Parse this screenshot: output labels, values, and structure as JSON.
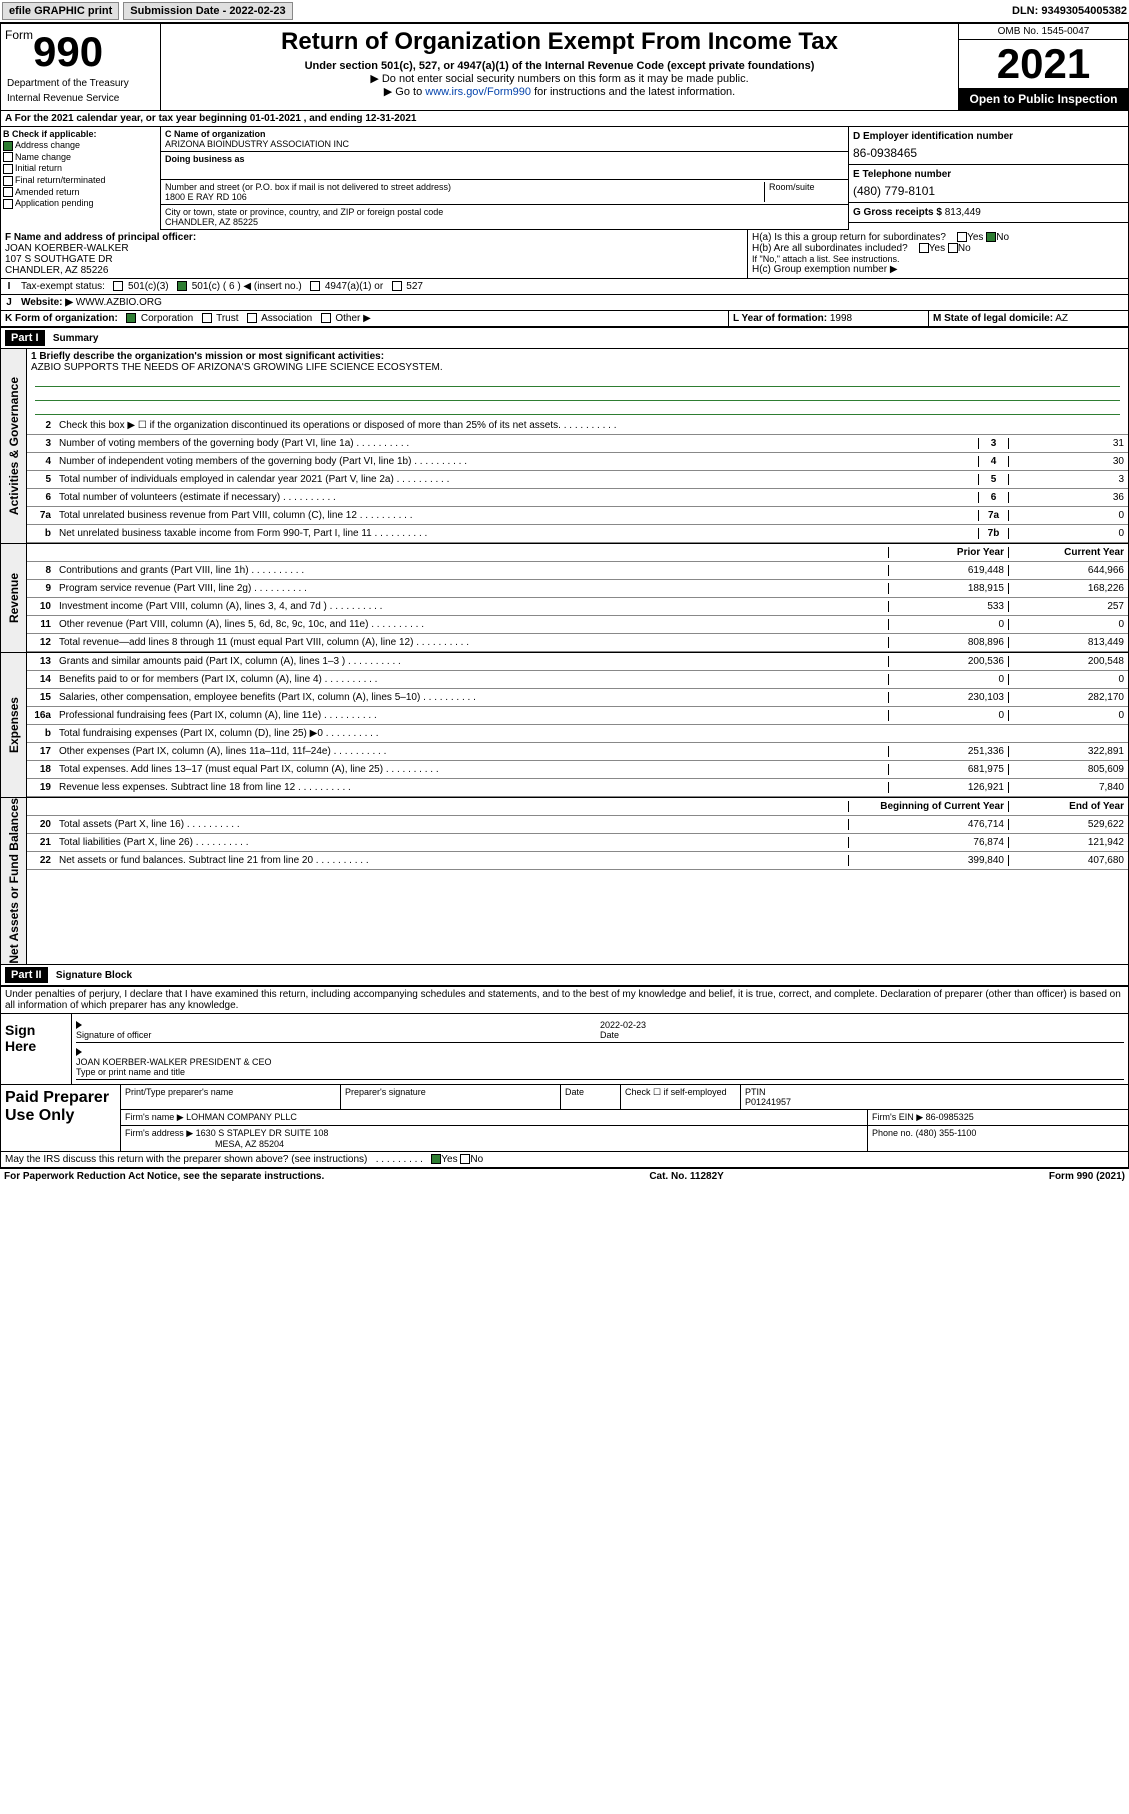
{
  "topbar": {
    "efile": "efile GRAPHIC print",
    "submission_label": "Submission Date - 2022-02-23",
    "dln": "DLN: 93493054005382"
  },
  "header": {
    "form_word": "Form",
    "form_num": "990",
    "title": "Return of Organization Exempt From Income Tax",
    "subtitle": "Under section 501(c), 527, or 4947(a)(1) of the Internal Revenue Code (except private foundations)",
    "note1": "▶ Do not enter social security numbers on this form as it may be made public.",
    "note2_pre": "▶ Go to ",
    "note2_link": "www.irs.gov/Form990",
    "note2_post": " for instructions and the latest information.",
    "omb": "OMB No. 1545-0047",
    "year": "2021",
    "open": "Open to Public Inspection",
    "dept": "Department of the Treasury",
    "irs": "Internal Revenue Service"
  },
  "row_a": {
    "text": "A For the 2021 calendar year, or tax year beginning 01-01-2021   , and ending 12-31-2021"
  },
  "col_b": {
    "header": "B Check if applicable:",
    "items": [
      "Address change",
      "Name change",
      "Initial return",
      "Final return/terminated",
      "Amended return",
      "Application pending"
    ],
    "checked_idx": 0
  },
  "col_c": {
    "name_lbl": "C Name of organization",
    "name": "ARIZONA BIOINDUSTRY ASSOCIATION INC",
    "dba_lbl": "Doing business as",
    "dba": "",
    "addr_lbl": "Number and street (or P.O. box if mail is not delivered to street address)",
    "room_lbl": "Room/suite",
    "addr": "1800 E RAY RD 106",
    "city_lbl": "City or town, state or province, country, and ZIP or foreign postal code",
    "city": "CHANDLER, AZ  85225"
  },
  "col_d": {
    "lbl": "D Employer identification number",
    "val": "86-0938465"
  },
  "col_e": {
    "lbl": "E Telephone number",
    "val": "(480) 779-8101"
  },
  "col_g": {
    "lbl": "G Gross receipts $",
    "val": "813,449"
  },
  "col_f": {
    "lbl": "F Name and address of principal officer:",
    "name": "JOAN KOERBER-WALKER",
    "addr1": "107 S SOUTHGATE DR",
    "addr2": "CHANDLER, AZ  85226"
  },
  "ha": {
    "lbl": "H(a)  Is this a group return for subordinates?",
    "yes": "Yes",
    "no": "No"
  },
  "hb": {
    "lbl": "H(b)  Are all subordinates included?",
    "yes": "Yes",
    "no": "No",
    "note": "If \"No,\" attach a list. See instructions."
  },
  "hc": {
    "lbl": "H(c)  Group exemption number ▶"
  },
  "row_i": {
    "lbl": "Tax-exempt status:",
    "opts": [
      "501(c)(3)",
      "501(c) ( 6 ) ◀ (insert no.)",
      "4947(a)(1) or",
      "527"
    ],
    "checked_idx": 1
  },
  "row_j": {
    "lbl": "Website: ▶",
    "val": "WWW.AZBIO.ORG"
  },
  "row_k": {
    "lbl": "K Form of organization:",
    "opts": [
      "Corporation",
      "Trust",
      "Association",
      "Other ▶"
    ],
    "checked_idx": 0
  },
  "row_l": {
    "lbl": "L Year of formation:",
    "val": "1998"
  },
  "row_m": {
    "lbl": "M State of legal domicile:",
    "val": "AZ"
  },
  "part1": {
    "hdr": "Part I",
    "title": "Summary"
  },
  "mission": {
    "lbl": "1  Briefly describe the organization's mission or most significant activities:",
    "text": "AZBIO SUPPORTS THE NEEDS OF ARIZONA'S GROWING LIFE SCIENCE ECOSYSTEM."
  },
  "gov_lines": [
    {
      "n": "2",
      "t": "Check this box ▶ ☐  if the organization discontinued its operations or disposed of more than 25% of its net assets.",
      "box": "",
      "v": ""
    },
    {
      "n": "3",
      "t": "Number of voting members of the governing body (Part VI, line 1a)",
      "box": "3",
      "v": "31"
    },
    {
      "n": "4",
      "t": "Number of independent voting members of the governing body (Part VI, line 1b)",
      "box": "4",
      "v": "30"
    },
    {
      "n": "5",
      "t": "Total number of individuals employed in calendar year 2021 (Part V, line 2a)",
      "box": "5",
      "v": "3"
    },
    {
      "n": "6",
      "t": "Total number of volunteers (estimate if necessary)",
      "box": "6",
      "v": "36"
    },
    {
      "n": "7a",
      "t": "Total unrelated business revenue from Part VIII, column (C), line 12",
      "box": "7a",
      "v": "0"
    },
    {
      "n": "b",
      "t": "Net unrelated business taxable income from Form 990-T, Part I, line 11",
      "box": "7b",
      "v": "0"
    }
  ],
  "two_col_hdr": {
    "prior": "Prior Year",
    "current": "Current Year"
  },
  "rev_lines": [
    {
      "n": "8",
      "t": "Contributions and grants (Part VIII, line 1h)",
      "p": "619,448",
      "c": "644,966"
    },
    {
      "n": "9",
      "t": "Program service revenue (Part VIII, line 2g)",
      "p": "188,915",
      "c": "168,226"
    },
    {
      "n": "10",
      "t": "Investment income (Part VIII, column (A), lines 3, 4, and 7d )",
      "p": "533",
      "c": "257"
    },
    {
      "n": "11",
      "t": "Other revenue (Part VIII, column (A), lines 5, 6d, 8c, 9c, 10c, and 11e)",
      "p": "0",
      "c": "0"
    },
    {
      "n": "12",
      "t": "Total revenue—add lines 8 through 11 (must equal Part VIII, column (A), line 12)",
      "p": "808,896",
      "c": "813,449"
    }
  ],
  "exp_lines": [
    {
      "n": "13",
      "t": "Grants and similar amounts paid (Part IX, column (A), lines 1–3 )",
      "p": "200,536",
      "c": "200,548"
    },
    {
      "n": "14",
      "t": "Benefits paid to or for members (Part IX, column (A), line 4)",
      "p": "0",
      "c": "0"
    },
    {
      "n": "15",
      "t": "Salaries, other compensation, employee benefits (Part IX, column (A), lines 5–10)",
      "p": "230,103",
      "c": "282,170"
    },
    {
      "n": "16a",
      "t": "Professional fundraising fees (Part IX, column (A), line 11e)",
      "p": "0",
      "c": "0"
    },
    {
      "n": "b",
      "t": "Total fundraising expenses (Part IX, column (D), line 25) ▶0",
      "p": "",
      "c": "",
      "shade": true
    },
    {
      "n": "17",
      "t": "Other expenses (Part IX, column (A), lines 11a–11d, 11f–24e)",
      "p": "251,336",
      "c": "322,891"
    },
    {
      "n": "18",
      "t": "Total expenses. Add lines 13–17 (must equal Part IX, column (A), line 25)",
      "p": "681,975",
      "c": "805,609"
    },
    {
      "n": "19",
      "t": "Revenue less expenses. Subtract line 18 from line 12",
      "p": "126,921",
      "c": "7,840"
    }
  ],
  "net_hdr": {
    "beg": "Beginning of Current Year",
    "end": "End of Year"
  },
  "net_lines": [
    {
      "n": "20",
      "t": "Total assets (Part X, line 16)",
      "p": "476,714",
      "c": "529,622"
    },
    {
      "n": "21",
      "t": "Total liabilities (Part X, line 26)",
      "p": "76,874",
      "c": "121,942"
    },
    {
      "n": "22",
      "t": "Net assets or fund balances. Subtract line 21 from line 20",
      "p": "399,840",
      "c": "407,680"
    }
  ],
  "vert_labels": {
    "gov": "Activities & Governance",
    "rev": "Revenue",
    "exp": "Expenses",
    "net": "Net Assets or Fund Balances"
  },
  "part2": {
    "hdr": "Part II",
    "title": "Signature Block"
  },
  "sig": {
    "penalty": "Under penalties of perjury, I declare that I have examined this return, including accompanying schedules and statements, and to the best of my knowledge and belief, it is true, correct, and complete. Declaration of preparer (other than officer) is based on all information of which preparer has any knowledge.",
    "sign_here": "Sign Here",
    "sig_officer": "Signature of officer",
    "date_lbl": "Date",
    "date": "2022-02-23",
    "name_title": "JOAN KOERBER-WALKER  PRESIDENT & CEO",
    "type_name": "Type or print name and title"
  },
  "paid": {
    "title": "Paid Preparer Use Only",
    "h1": "Print/Type preparer's name",
    "h2": "Preparer's signature",
    "h3": "Date",
    "h4": "Check ☐ if self-employed",
    "h5": "PTIN",
    "ptin": "P01241957",
    "firm_lbl": "Firm's name    ▶",
    "firm": "LOHMAN COMPANY PLLC",
    "ein_lbl": "Firm's EIN ▶",
    "ein": "86-0985325",
    "addr_lbl": "Firm's address ▶",
    "addr": "1630 S STAPLEY DR SUITE 108",
    "city": "MESA, AZ  85204",
    "phone_lbl": "Phone no.",
    "phone": "(480) 355-1100"
  },
  "discuss": {
    "text": "May the IRS discuss this return with the preparer shown above? (see instructions)",
    "yes": "Yes",
    "no": "No"
  },
  "footer": {
    "left": "For Paperwork Reduction Act Notice, see the separate instructions.",
    "mid": "Cat. No. 11282Y",
    "right": "Form 990 (2021)"
  }
}
